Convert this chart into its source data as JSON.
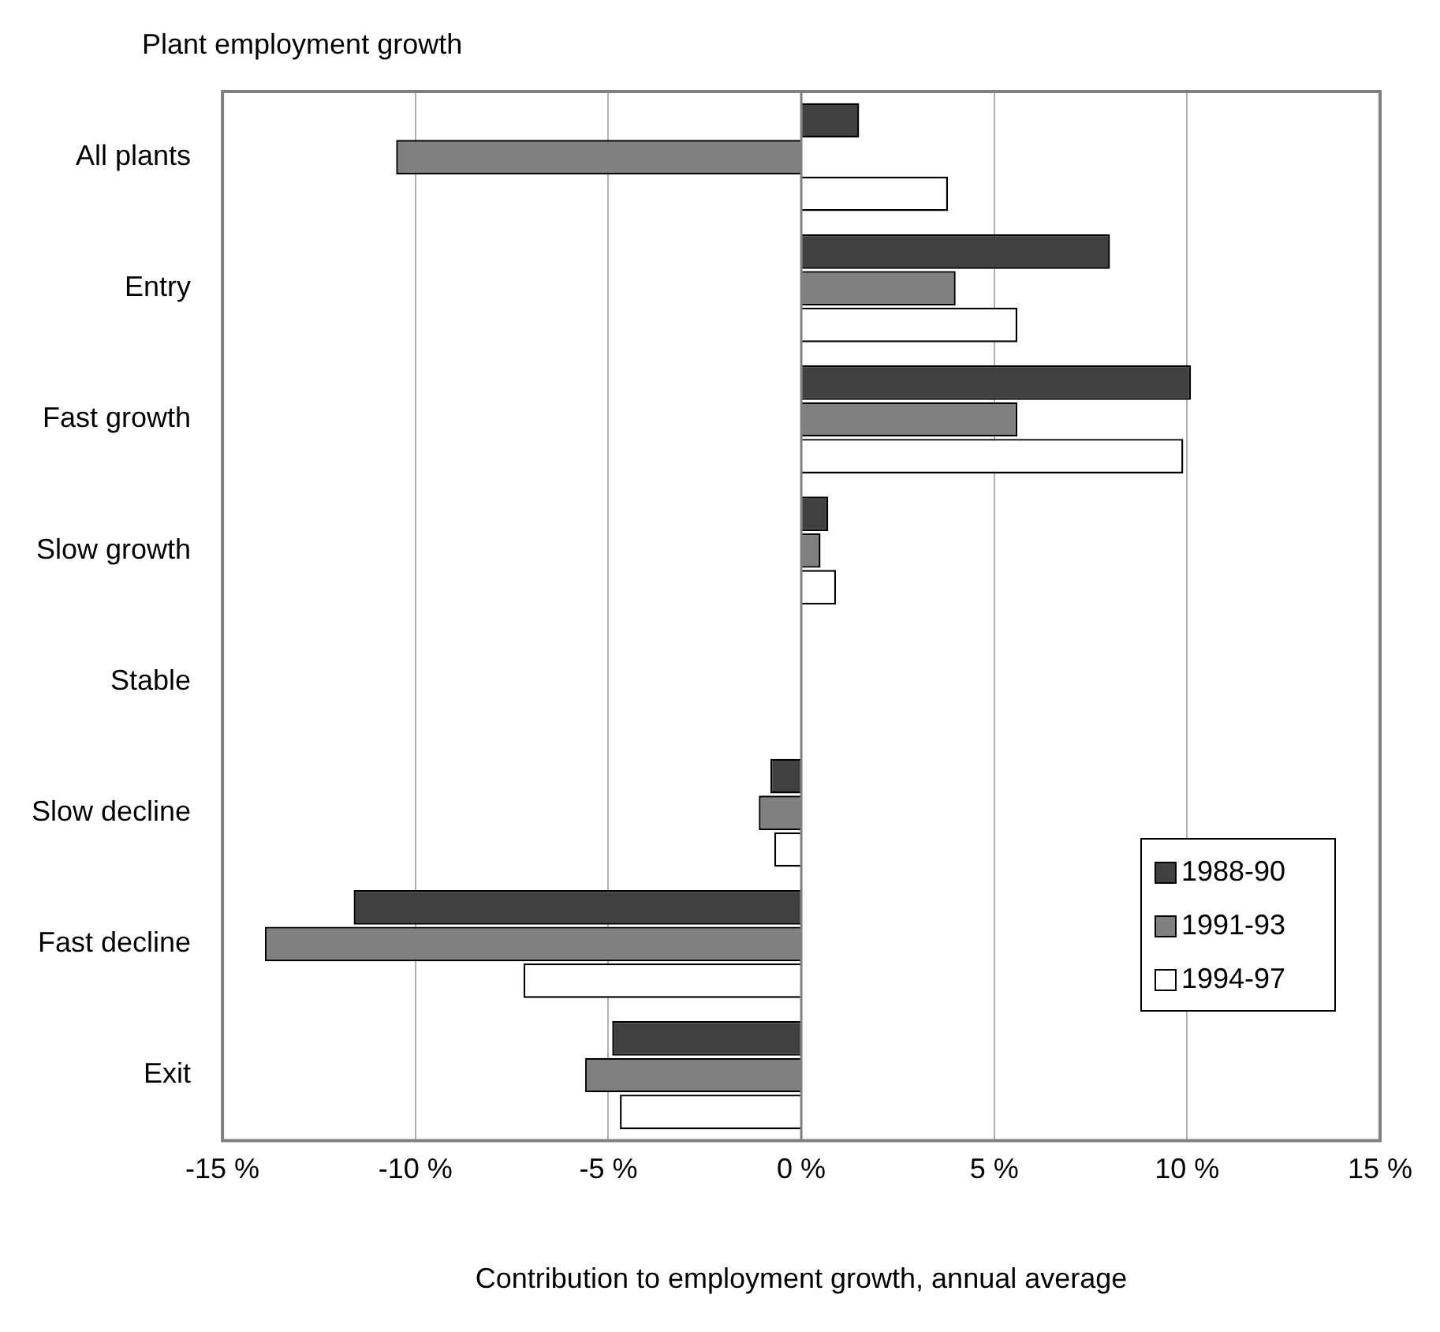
{
  "chart_data": {
    "type": "bar",
    "orientation": "horizontal",
    "ylabel": "Plant employment growth",
    "xlabel": "Contribution to employment growth, annual average",
    "categories": [
      "All plants",
      "Entry",
      "Fast growth",
      "Slow growth",
      "Stable",
      "Slow decline",
      "Fast decline",
      "Exit"
    ],
    "series": [
      {
        "name": "1988-90",
        "color": "#404040",
        "values": [
          1.5,
          8.0,
          10.1,
          0.7,
          0,
          -0.8,
          -11.6,
          -4.9
        ]
      },
      {
        "name": "1991-93",
        "color": "#808080",
        "values": [
          -10.5,
          4.0,
          5.6,
          0.5,
          0,
          -1.1,
          -13.9,
          -5.6
        ]
      },
      {
        "name": "1994-97",
        "color": "#ffffff",
        "values": [
          3.8,
          5.6,
          9.9,
          0.9,
          0,
          -0.7,
          -7.2,
          -4.7
        ]
      }
    ],
    "xlim": [
      -15,
      15
    ],
    "xticks": [
      {
        "value": -15,
        "label": "-15 %"
      },
      {
        "value": -10,
        "label": "-10 %"
      },
      {
        "value": -5,
        "label": "-5 %"
      },
      {
        "value": 0,
        "label": "0 %"
      },
      {
        "value": 5,
        "label": "5 %"
      },
      {
        "value": 10,
        "label": "10 %"
      },
      {
        "value": 15,
        "label": "15 %"
      }
    ],
    "grid": "x",
    "legend": "bottom right"
  }
}
